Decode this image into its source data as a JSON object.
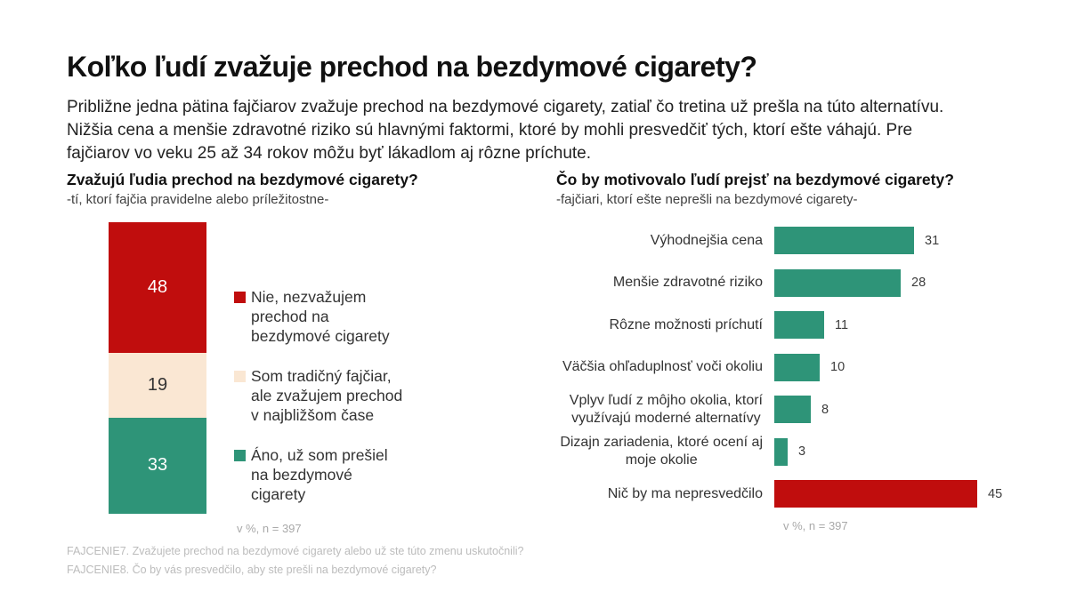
{
  "page": {
    "title": "Koľko ľudí zvažuje prechod na bezdymové cigarety?",
    "intro": "Približne jedna pätina fajčiarov zvažuje prechod na bezdymové cigarety, zatiaľ čo tretina už prešla na túto alternatívu. Nižšia cena a menšie zdravotné riziko sú hlavnými faktormi, ktoré by mohli presvedčiť tých, ktorí ešte váhajú. Pre fajčiarov vo veku 25 až 34 rokov môžu byť lákadlom aj rôzne príchute.",
    "footnotes": [
      "FAJCENIE7. Zvažujete prechod na bezdymové cigarety alebo už ste túto zmenu uskutočnili?",
      "FAJCENIE8. Čo by vás presvedčilo, aby ste prešli na bezdymové cigarety?"
    ]
  },
  "colors": {
    "red": "#c00d0d",
    "cream": "#fae7d3",
    "green": "#2e9478",
    "note_gray": "#a9a9a9"
  },
  "chart_data": [
    {
      "type": "bar",
      "subtype": "stacked_column",
      "title": "Zvažujú ľudia prechod na bezdymové cigarety?",
      "subtitle": "-tí, ktorí fajčia pravidelne alebo príležitostne-",
      "unit_note": "v %, n = 397",
      "ylim": [
        0,
        100
      ],
      "legend_position": "right",
      "segments": [
        {
          "label": "Nie, nezvažujem prechod na bezdymové cigarety",
          "legend_lines": [
            "Nie, nezvažujem",
            "prechod na",
            "bezdymové cigarety"
          ],
          "value": 48,
          "color": "#c00d0d",
          "value_color": "#ffffff"
        },
        {
          "label": "Som tradičný fajčiar, ale zvažujem prechod v najbližšom čase",
          "legend_lines": [
            "Som tradičný fajčiar,",
            "ale zvažujem prechod",
            "v najbližšom čase"
          ],
          "value": 19,
          "color": "#fae7d3",
          "value_color": "#333333"
        },
        {
          "label": "Áno, už som prešiel na bezdymové cigarety",
          "legend_lines": [
            "Áno, už som prešiel",
            "na bezdymové",
            "cigarety"
          ],
          "value": 33,
          "color": "#2e9478",
          "value_color": "#ffffff"
        }
      ]
    },
    {
      "type": "bar",
      "subtype": "horizontal",
      "title": "Čo by motivovalo ľudí prejsť na bezdymové cigarety?",
      "subtitle": "-fajčiari, ktorí ešte neprešli na bezdymové cigarety-",
      "unit_note": "v %, n = 397",
      "xlim": [
        0,
        45
      ],
      "grid": false,
      "rows": [
        {
          "label_lines": [
            "Výhodnejšia cena"
          ],
          "value": 31,
          "color": "#2e9478"
        },
        {
          "label_lines": [
            "Menšie zdravotné riziko"
          ],
          "value": 28,
          "color": "#2e9478"
        },
        {
          "label_lines": [
            "Rôzne možnosti príchutí"
          ],
          "value": 11,
          "color": "#2e9478"
        },
        {
          "label_lines": [
            "Väčšia ohľaduplnosť voči okoliu"
          ],
          "value": 10,
          "color": "#2e9478"
        },
        {
          "label_lines": [
            "Vplyv ľudí z môjho okolia, ktorí",
            "využívajú moderné alternatívy"
          ],
          "value": 8,
          "color": "#2e9478"
        },
        {
          "label_lines": [
            "Dizajn zariadenia, ktoré ocení aj",
            "moje okolie"
          ],
          "value": 3,
          "color": "#2e9478"
        },
        {
          "label_lines": [
            "Nič by ma nepresvedčilo"
          ],
          "value": 45,
          "color": "#c00d0d"
        }
      ]
    }
  ]
}
